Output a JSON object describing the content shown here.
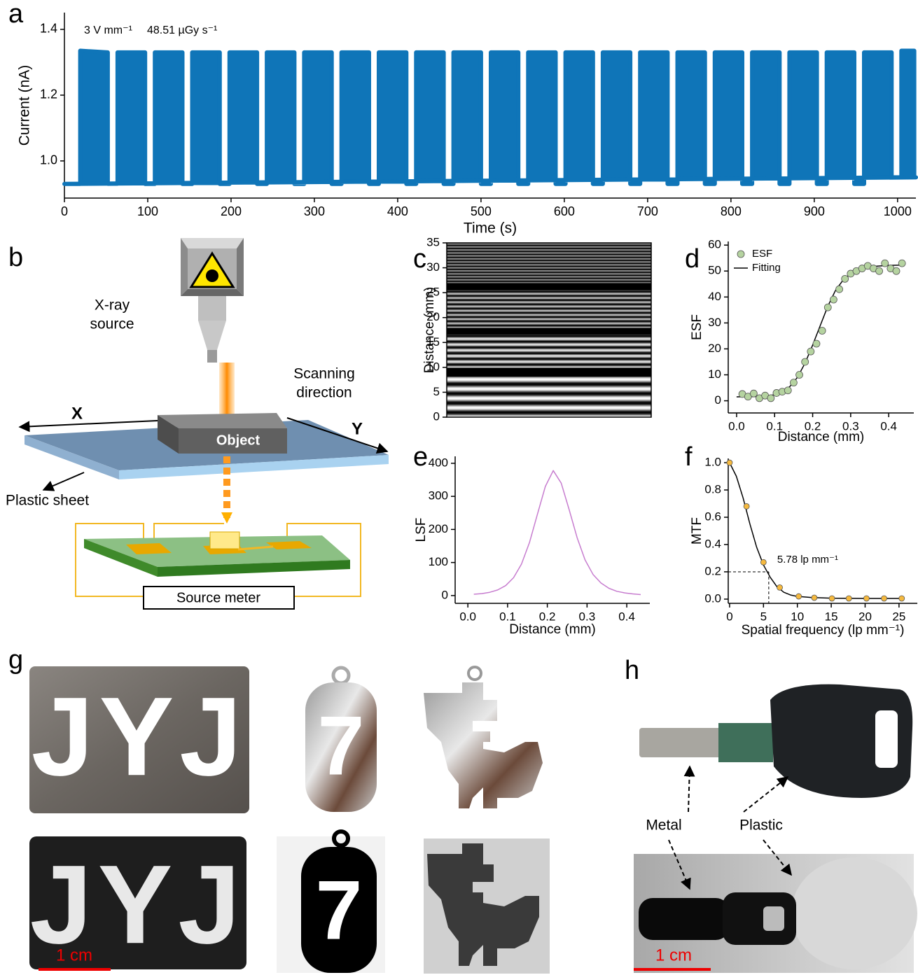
{
  "panel_labels": [
    "a",
    "b",
    "c",
    "d",
    "e",
    "f",
    "g",
    "h"
  ],
  "chart_data": [
    {
      "type": "line",
      "xlabel": "Time (s)",
      "ylabel": "Current (nA)",
      "annotation": [
        "3 V mm⁻¹",
        "48.51 µGy s⁻¹"
      ],
      "xlim": [
        0,
        1022
      ],
      "ylim": [
        0.887,
        1.451
      ],
      "xticks": [
        0,
        100,
        200,
        300,
        400,
        500,
        600,
        700,
        800,
        900,
        1000
      ],
      "yticks": [
        {
          "value": 1,
          "label": "1.0"
        },
        1.2,
        1.4
      ],
      "series": [
        {
          "color": "#0f75b8",
          "x": [
            0,
            19,
            19,
            52,
            52,
            63.8,
            63.8,
            96.8,
            96.8,
            108.6,
            108.6,
            141.6,
            141.6,
            153.4,
            153.4,
            186.4,
            186.4,
            198.2,
            198.2,
            231.2,
            231.2,
            243,
            243,
            276,
            276,
            287.8,
            287.8,
            320.8,
            320.8,
            332.6,
            332.6,
            365.6,
            365.6,
            377.4,
            377.4,
            410.4,
            410.4,
            422.2,
            422.2,
            455.2,
            455.2,
            467,
            467,
            500,
            500,
            511.8,
            511.8,
            544.8,
            544.8,
            556.6,
            556.6,
            589.6,
            589.6,
            601.4,
            601.4,
            634.4,
            634.4,
            646.2,
            646.2,
            679.2,
            679.2,
            691,
            691,
            724,
            724,
            735.8,
            735.8,
            768.8,
            768.8,
            780.6,
            780.6,
            813.6,
            813.6,
            825.4,
            825.4,
            858.4,
            858.4,
            870.2,
            870.2,
            903.2,
            903.2,
            915,
            915,
            948,
            948,
            959.8,
            959.8,
            992.8,
            992.8,
            1004.6,
            1004.6,
            1020,
            1020,
            1022
          ],
          "values": [
            0.93,
            0.93,
            1.335,
            1.33,
            0.93,
            0.93,
            1.33,
            1.33,
            0.93,
            0.93,
            1.33,
            1.33,
            0.93,
            0.93,
            1.33,
            1.33,
            0.93,
            0.93,
            1.33,
            1.33,
            0.93,
            0.93,
            1.33,
            1.33,
            0.93,
            0.93,
            1.33,
            1.33,
            0.93,
            0.93,
            1.33,
            1.33,
            0.93,
            0.93,
            1.33,
            1.33,
            0.93,
            0.93,
            1.33,
            1.33,
            0.93,
            0.93,
            1.33,
            1.33,
            0.93,
            0.93,
            1.33,
            1.33,
            0.93,
            0.93,
            1.33,
            1.33,
            0.93,
            0.93,
            1.33,
            1.33,
            0.93,
            0.93,
            1.33,
            1.33,
            0.93,
            0.93,
            1.33,
            1.33,
            0.93,
            0.93,
            1.33,
            1.33,
            0.93,
            0.93,
            1.33,
            1.33,
            0.93,
            0.93,
            1.33,
            1.33,
            0.93,
            0.93,
            1.33,
            1.33,
            0.93,
            0.93,
            1.33,
            1.33,
            0.93,
            0.93,
            1.33,
            1.33,
            0.95,
            0.95,
            1.335,
            1.335,
            0.95,
            0.95
          ]
        }
      ]
    },
    {
      "type": "image",
      "ylabel": "Distance (mm)",
      "ylim": [
        0,
        35
      ],
      "yticks": [
        0,
        5,
        10,
        15,
        20,
        25,
        30,
        35
      ]
    },
    {
      "type": "scatter",
      "xlabel": "Distance (mm)",
      "ylabel": "ESF",
      "legend": "upper left",
      "xlim": [
        -0.022,
        0.466
      ],
      "ylim": [
        -4.7,
        61.4
      ],
      "xticks": [
        {
          "value": 0,
          "label": "0.0"
        },
        0.1,
        0.2,
        0.3,
        0.4
      ],
      "yticks": [
        0,
        10,
        20,
        30,
        40,
        50,
        60
      ],
      "series": [
        {
          "name": "ESF",
          "type": "scatter",
          "color": "#b5d3a0",
          "x": [
            0.015,
            0.03,
            0.045,
            0.06,
            0.075,
            0.09,
            0.105,
            0.12,
            0.135,
            0.15,
            0.165,
            0.18,
            0.195,
            0.21,
            0.225,
            0.24,
            0.255,
            0.27,
            0.285,
            0.3,
            0.315,
            0.33,
            0.345,
            0.36,
            0.375,
            0.39,
            0.405,
            0.42,
            0.435
          ],
          "values": [
            2.6,
            1.6,
            2.8,
            1,
            2,
            1,
            3,
            3.5,
            4,
            7,
            10,
            15,
            19,
            22,
            27,
            36,
            39,
            43,
            47,
            49,
            50,
            51,
            52,
            51,
            50,
            53,
            51,
            50,
            53
          ]
        },
        {
          "name": "Fitting",
          "type": "line",
          "color": "#000000",
          "x": [
            0,
            0.05,
            0.1,
            0.12,
            0.14,
            0.16,
            0.18,
            0.2,
            0.22,
            0.24,
            0.26,
            0.28,
            0.3,
            0.33,
            0.36,
            0.4,
            0.44
          ],
          "values": [
            1.5,
            1.6,
            2.3,
            3.5,
            5.5,
            9,
            14.5,
            21.5,
            29,
            36.5,
            42.5,
            46.5,
            49,
            51,
            51.8,
            52.2,
            52.3
          ]
        }
      ]
    },
    {
      "type": "line",
      "xlabel": "Distance (mm)",
      "ylabel": "LSF",
      "xlim": [
        -0.032,
        0.458
      ],
      "ylim": [
        -23.5,
        421
      ],
      "xticks": [
        {
          "value": 0,
          "label": "0.0"
        },
        0.1,
        0.2,
        0.3,
        0.4
      ],
      "yticks": [
        0,
        100,
        200,
        300,
        400
      ],
      "series": [
        {
          "color": "#c77dcf",
          "x": [
            0.015,
            0.035,
            0.055,
            0.075,
            0.095,
            0.115,
            0.135,
            0.155,
            0.175,
            0.195,
            0.215,
            0.235,
            0.255,
            0.275,
            0.295,
            0.315,
            0.335,
            0.355,
            0.375,
            0.395,
            0.415,
            0.435
          ],
          "values": [
            4,
            6,
            10,
            17,
            30,
            54,
            95,
            160,
            245,
            330,
            378,
            340,
            260,
            175,
            108,
            64,
            38,
            22,
            13,
            8,
            5,
            3
          ]
        }
      ]
    },
    {
      "type": "scatter",
      "xlabel": "Spatial frequency (lp mm⁻¹)",
      "ylabel": "MTF",
      "xlim": [
        -0.2,
        27.7
      ],
      "ylim": [
        -0.031,
        1.031
      ],
      "xticks": [
        0,
        5,
        10,
        15,
        20,
        25
      ],
      "yticks": [
        {
          "value": 0,
          "label": "0.0"
        },
        0.2,
        0.4,
        0.6,
        0.8,
        {
          "value": 1,
          "label": "1.0"
        }
      ],
      "annotation": {
        "text": "5.78 lp mm⁻¹",
        "x": 5.78,
        "y": 0.2
      },
      "series": [
        {
          "type": "scatter",
          "color": "#f5b93f",
          "x": [
            0,
            2.5,
            5,
            7.4,
            10.2,
            12.5,
            15.1,
            17.6,
            20.2,
            22.8,
            25.4
          ],
          "values": [
            1,
            0.68,
            0.27,
            0.085,
            0.02,
            0.01,
            0.005,
            0.005,
            0.005,
            0.005,
            0.005
          ]
        },
        {
          "type": "line",
          "color": "#000000",
          "x": [
            0,
            1,
            2,
            3,
            4,
            5,
            6,
            7,
            8,
            9,
            10,
            12,
            15,
            20,
            25.5
          ],
          "values": [
            1,
            0.9,
            0.74,
            0.55,
            0.38,
            0.25,
            0.16,
            0.09,
            0.05,
            0.03,
            0.02,
            0.012,
            0.007,
            0.005,
            0.005
          ]
        }
      ]
    }
  ],
  "diagram": {
    "source": [
      "X-ray",
      "source"
    ],
    "scan": [
      "Scanning",
      "direction"
    ],
    "x_axis": "X",
    "y_axis": "Y",
    "object": "Object",
    "sheet": "Plastic sheet",
    "meter": "Source meter"
  },
  "photos": {
    "g": {
      "letters": [
        "JYJ",
        "7",
        "JYJ",
        "7"
      ],
      "scale_bar": "1 cm"
    },
    "h": {
      "metal": "Metal",
      "plastic": "Plastic",
      "scale_bar": "1 cm"
    }
  }
}
